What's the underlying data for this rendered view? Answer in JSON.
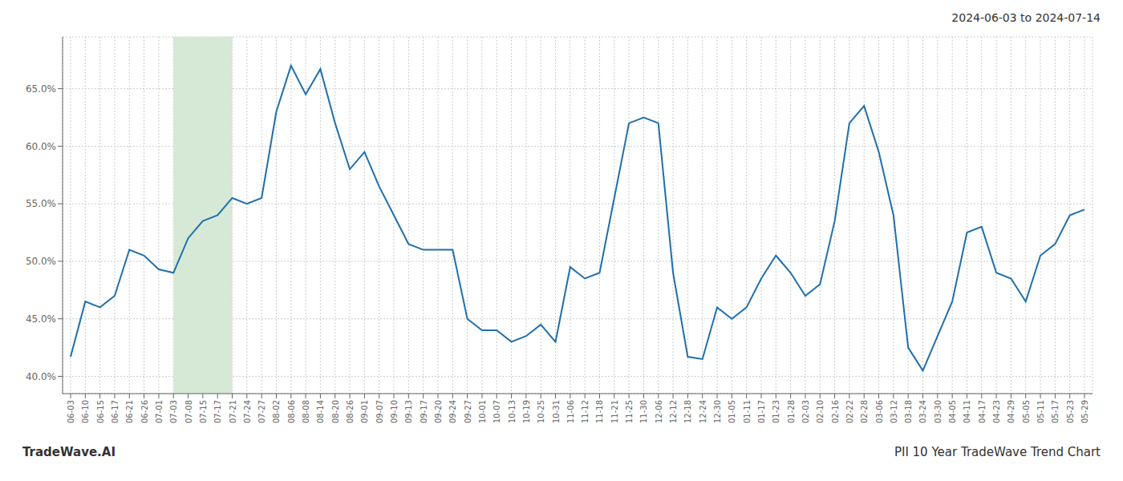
{
  "chart_data": {
    "type": "line",
    "title": "2024-06-03 to 2024-07-14",
    "annotations": [
      "TradeWave.AI",
      "PII 10 Year TradeWave Trend Chart"
    ],
    "categories": [
      "06-03",
      "06-10",
      "06-15",
      "06-17",
      "06-21",
      "06-26",
      "07-01",
      "07-03",
      "07-08",
      "07-15",
      "07-17",
      "07-21",
      "07-24",
      "07-27",
      "08-02",
      "08-06",
      "08-08",
      "08-14",
      "08-20",
      "08-26",
      "09-01",
      "09-07",
      "09-10",
      "09-13",
      "09-17",
      "09-20",
      "09-24",
      "09-27",
      "10-01",
      "10-07",
      "10-13",
      "10-19",
      "10-25",
      "10-31",
      "11-06",
      "11-12",
      "11-18",
      "11-21",
      "11-25",
      "11-30",
      "12-06",
      "12-12",
      "12-18",
      "12-24",
      "12-30",
      "01-05",
      "01-11",
      "01-17",
      "01-23",
      "01-28",
      "02-03",
      "02-10",
      "02-16",
      "02-22",
      "02-28",
      "03-06",
      "03-12",
      "03-18",
      "03-24",
      "03-30",
      "04-05",
      "04-11",
      "04-17",
      "04-23",
      "04-29",
      "05-05",
      "05-11",
      "05-17",
      "05-23",
      "05-29"
    ],
    "values": [
      0.417,
      0.465,
      0.46,
      0.47,
      0.51,
      0.505,
      0.493,
      0.49,
      0.52,
      0.535,
      0.54,
      0.555,
      0.55,
      0.555,
      0.63,
      0.67,
      0.645,
      0.667,
      0.62,
      0.58,
      0.595,
      0.565,
      0.54,
      0.515,
      0.51,
      0.51,
      0.51,
      0.45,
      0.44,
      0.44,
      0.43,
      0.435,
      0.445,
      0.43,
      0.495,
      0.485,
      0.49,
      0.555,
      0.62,
      0.625,
      0.62,
      0.49,
      0.417,
      0.415,
      0.46,
      0.45,
      0.46,
      0.485,
      0.505,
      0.49,
      0.47,
      0.48,
      0.535,
      0.62,
      0.635,
      0.595,
      0.54,
      0.425,
      0.405,
      0.435,
      0.465,
      0.525,
      0.53,
      0.49,
      0.485,
      0.465,
      0.505,
      0.515,
      0.54,
      0.545
    ],
    "color": "#1f6fad",
    "ylim": [
      0.385,
      0.695
    ],
    "yticks": [
      {
        "value": 0.4,
        "label": "40.0%"
      },
      {
        "value": 0.45,
        "label": "45.0%"
      },
      {
        "value": 0.5,
        "label": "50.0%"
      },
      {
        "value": 0.55,
        "label": "55.0%"
      },
      {
        "value": 0.6,
        "label": "60.0%"
      },
      {
        "value": 0.65,
        "label": "65.0%"
      }
    ],
    "grid": true,
    "shade": {
      "start": "07-03",
      "end": "07-21",
      "color": "#d6e8d6"
    }
  }
}
